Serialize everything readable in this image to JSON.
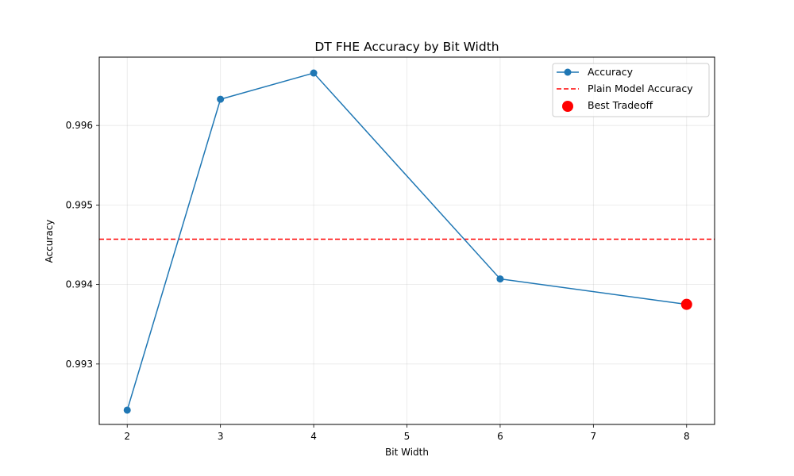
{
  "chart_data": {
    "type": "line",
    "title": "DT FHE Accuracy by Bit Width",
    "xlabel": "Bit Width",
    "ylabel": "Accuracy",
    "xlim": [
      1.7,
      8.3
    ],
    "ylim": [
      0.99224,
      0.99686
    ],
    "xticks": [
      2,
      3,
      4,
      5,
      6,
      7,
      8
    ],
    "yticks": [
      0.993,
      0.994,
      0.995,
      0.996
    ],
    "xtick_labels": [
      "2",
      "3",
      "4",
      "5",
      "6",
      "7",
      "8"
    ],
    "ytick_labels": [
      "0.993",
      "0.994",
      "0.995",
      "0.996"
    ],
    "grid": true,
    "legend_position": "top-right",
    "series": [
      {
        "name": "Accuracy",
        "kind": "line-with-markers",
        "color": "#1f77b4",
        "x": [
          2,
          3,
          4,
          6,
          8
        ],
        "y": [
          0.99242,
          0.99633,
          0.99666,
          0.99407,
          0.99375
        ]
      }
    ],
    "reference_line": {
      "name": "Plain Model Accuracy",
      "kind": "horizontal-dashed",
      "color": "#ff0000",
      "y": 0.99457
    },
    "highlight": {
      "name": "Best Tradeoff",
      "kind": "scatter",
      "color": "#ff0000",
      "x": 8,
      "y": 0.99375
    }
  }
}
